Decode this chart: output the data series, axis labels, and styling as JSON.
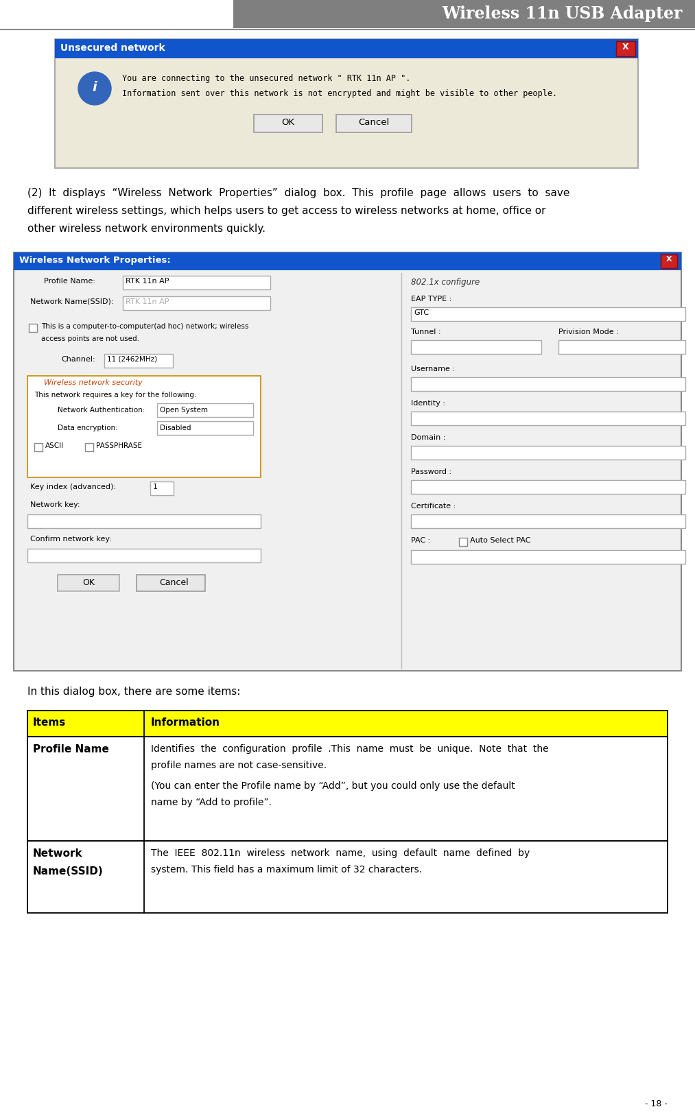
{
  "title": "Wireless 11n USB Adapter",
  "title_bg": "#7f7f7f",
  "title_color": "#ffffff",
  "page_bg": "#ffffff",
  "page_number": "- 18 -",
  "fig_w": 10.13,
  "fig_h": 16.31,
  "dpi": 100,
  "dialog1": {
    "title_text": "Unsecured network",
    "title_bg": "#1155cc",
    "title_color": "#ffffff",
    "body_bg": "#ede9d8",
    "border_color": "#999999",
    "text_line1": "You are connecting to the unsecured network \" RTK 11n AP \".",
    "text_line2": "Information sent over this network is not encrypted and might be visible to other people.",
    "btn1": "OK",
    "btn2": "Cancel"
  },
  "para_line1": "(2)  It  displays  “Wireless  Network  Properties”  dialog  box.  This  profile  page  allows  users  to  save",
  "para_line2": "different wireless settings, which helps users to get access to wireless networks at home, office or",
  "para_line3": "other wireless network environments quickly.",
  "dialog2_title": "Wireless Network Properties:",
  "dialog2_title_bg": "#1155cc",
  "dialog2_body_bg": "#f0f0f0",
  "intro_text": "In this dialog box, there are some items:",
  "table_header_bg": "#ffff00",
  "col1_header": "Items",
  "col2_header": "Information",
  "row1_item": "Profile Name",
  "row1_info_1": "Identifies  the  configuration  profile  .This  name  must  be  unique.  Note  that  the",
  "row1_info_2": "profile names are not case-sensitive.",
  "row1_info_3": "(You can enter the Profile name by “Add”, but you could only use the default",
  "row1_info_4": "name by “Add to profile”.",
  "row2_item_1": "Network",
  "row2_item_2": "Name(SSID)",
  "row2_info_1": "The  IEEE  802.11n  wireless  network  name,  using  default  name  defined  by",
  "row2_info_2": "system. This field has a maximum limit of 32 characters."
}
